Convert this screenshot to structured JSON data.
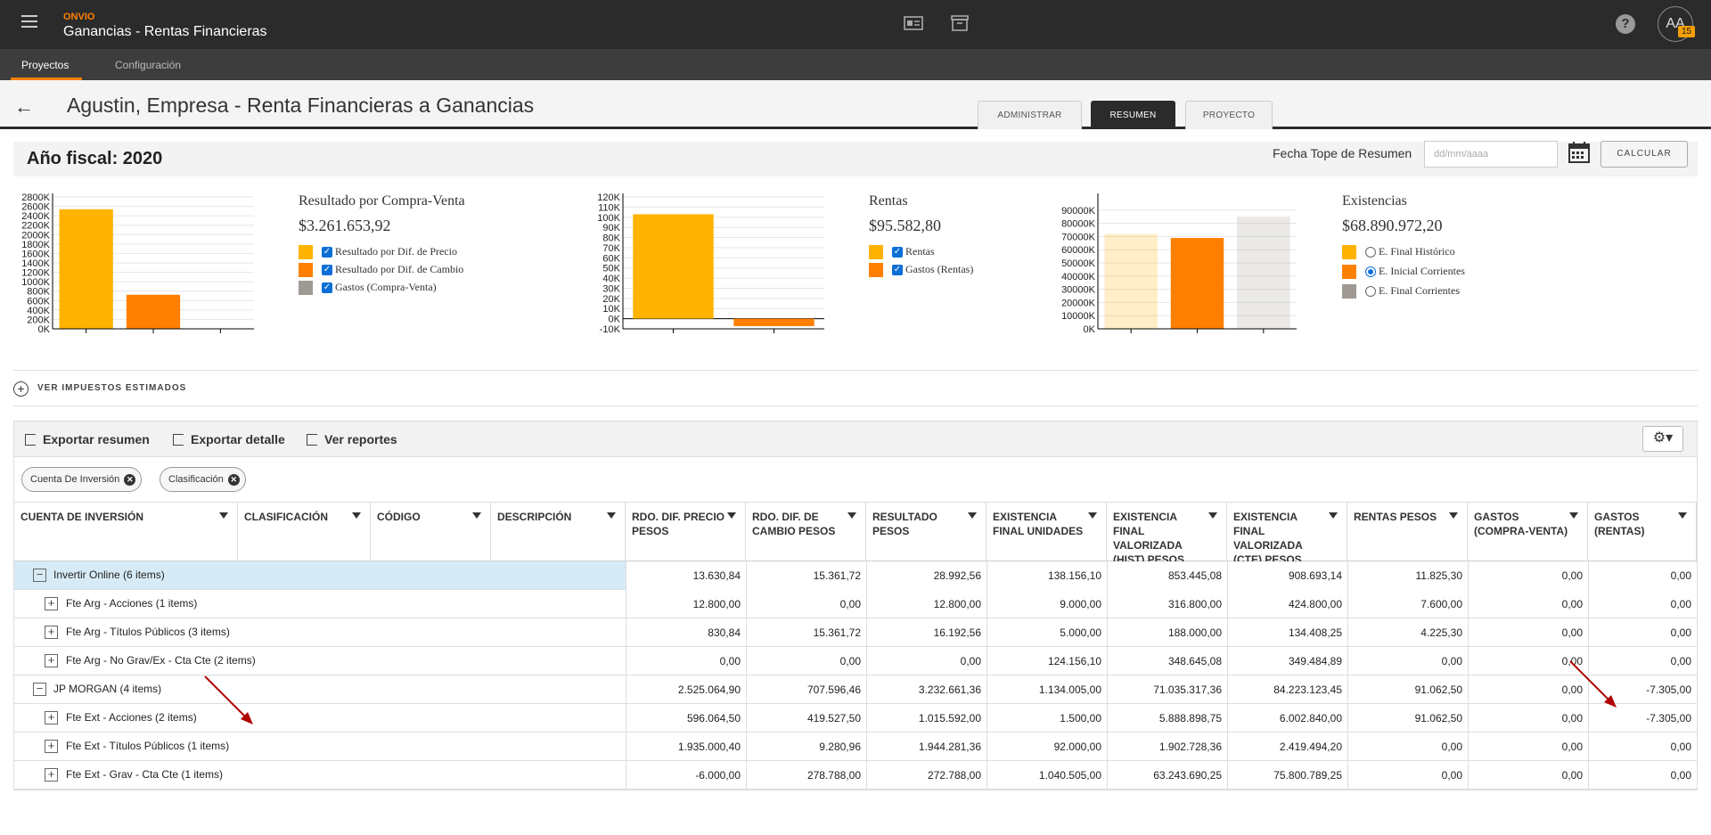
{
  "app": {
    "brand": "ONVIO",
    "title": "Ganancias - Rentas Financieras",
    "avatar": "AA",
    "badge": "15",
    "help": "?"
  },
  "subnav": {
    "tabs": [
      "Proyectos",
      "Configuración"
    ]
  },
  "page": {
    "title": "Agustin, Empresa - Renta Financieras a Ganancias",
    "tabs": [
      "ADMINISTRAR",
      "RESUMEN",
      "PROYECTO"
    ]
  },
  "fiscal": {
    "year_label": "Año fiscal: 2020",
    "date_label": "Fecha Tope de Resumen",
    "date_placeholder": "dd/mm/aaaa",
    "calc_label": "CALCULAR"
  },
  "chart_data": [
    {
      "type": "bar",
      "title": "Resultado por Compra-Venta",
      "total": "$3.261.653,92",
      "yticks": [
        "2800K",
        "2600K",
        "2400K",
        "2200K",
        "2000K",
        "1800K",
        "1600K",
        "1400K",
        "1200K",
        "1000K",
        "800K",
        "600K",
        "400K",
        "200K",
        "0K"
      ],
      "ylim": [
        0,
        2800000
      ],
      "categories": [
        "Resultado por Dif. de Precio",
        "Resultado por Dif. de Cambio",
        "Gastos (Compra-Venta)"
      ],
      "values": [
        2538695.74,
        722958.18,
        0
      ],
      "colors": [
        "#ffb300",
        "#ff8000",
        "#9e9993"
      ],
      "legend": [
        "Resultado por Dif. de Precio",
        "Resultado por Dif. de Cambio",
        "Gastos (Compra-Venta)"
      ]
    },
    {
      "type": "bar",
      "title": "Rentas",
      "total": "$95.582,80",
      "yticks": [
        "120K",
        "110K",
        "100K",
        "90K",
        "80K",
        "70K",
        "60K",
        "50K",
        "40K",
        "30K",
        "20K",
        "10K",
        "0K",
        "-10K"
      ],
      "ylim": [
        -10000,
        120000
      ],
      "categories": [
        "Rentas",
        "Gastos (Rentas)"
      ],
      "values": [
        102887.8,
        -7305
      ],
      "colors": [
        "#ffb300",
        "#ff8000"
      ],
      "legend": [
        "Rentas",
        "Gastos (Rentas)"
      ]
    },
    {
      "type": "bar",
      "title": "Existencias",
      "total": "$68.890.972,20",
      "yticks": [
        "90000K",
        "80000K",
        "70000K",
        "60000K",
        "50000K",
        "40000K",
        "30000K",
        "20000K",
        "10000K",
        "0K"
      ],
      "ylim": [
        0,
        100000000
      ],
      "categories": [
        "E. Final Histórico",
        "E. Inicial Corrientes",
        "E. Final Corrientes"
      ],
      "values": [
        71888762.4,
        68890972.2,
        85131816.59
      ],
      "colors": [
        "#ffb300",
        "#ff8000",
        "#9e9993"
      ],
      "active_index": 1,
      "legend": [
        "E. Final Histórico",
        "E. Inicial Corrientes",
        "E. Final Corrientes"
      ]
    }
  ],
  "taxes": {
    "label": "VER IMPUESTOS ESTIMADOS"
  },
  "toolbar": {
    "export_summary": "Exportar resumen",
    "export_detail": "Exportar detalle",
    "reports": "Ver reportes"
  },
  "chips": [
    "Cuenta De Inversión",
    "Clasificación"
  ],
  "columns": [
    "CUENTA DE INVERSIÓN",
    "CLASIFICACIÓN",
    "CÓDIGO",
    "DESCRIPCIÓN",
    "RDO. DIF. PRECIO PESOS",
    "RDO. DIF. DE CAMBIO PESOS",
    "RESULTADO PESOS",
    "EXISTENCIA FINAL UNIDADES",
    "EXISTENCIA FINAL VALORIZADA (HIST) PESOS",
    "EXISTENCIA FINAL VALORIZADA (CTE) PESOS",
    "RENTAS PESOS",
    "GASTOS (COMPRA-VENTA)",
    "GASTOS (RENTAS)"
  ],
  "rows": [
    {
      "name": "Invertir Online (6 items)",
      "level": 0,
      "toggle": "−",
      "values": [
        "13.630,84",
        "15.361,72",
        "28.992,56",
        "138.156,10",
        "853.445,08",
        "908.693,14",
        "11.825,30",
        "0,00",
        "0,00"
      ]
    },
    {
      "name": "Fte Arg - Acciones (1 items)",
      "level": 1,
      "toggle": "+",
      "values": [
        "12.800,00",
        "0,00",
        "12.800,00",
        "9.000,00",
        "316.800,00",
        "424.800,00",
        "7.600,00",
        "0,00",
        "0,00"
      ]
    },
    {
      "name": "Fte Arg - Títulos Públicos (3 items)",
      "level": 1,
      "toggle": "+",
      "values": [
        "830,84",
        "15.361,72",
        "16.192,56",
        "5.000,00",
        "188.000,00",
        "134.408,25",
        "4.225,30",
        "0,00",
        "0,00"
      ]
    },
    {
      "name": "Fte Arg - No Grav/Ex - Cta Cte (2 items)",
      "level": 1,
      "toggle": "+",
      "values": [
        "0,00",
        "0,00",
        "0,00",
        "124.156,10",
        "348.645,08",
        "349.484,89",
        "0,00",
        "0,00",
        "0,00"
      ]
    },
    {
      "name": "JP MORGAN (4 items)",
      "level": 0,
      "toggle": "−",
      "values": [
        "2.525.064,90",
        "707.596,46",
        "3.232.661,36",
        "1.134.005,00",
        "71.035.317,36",
        "84.223.123,45",
        "91.062,50",
        "0,00",
        "-7.305,00"
      ]
    },
    {
      "name": "Fte Ext - Acciones (2 items)",
      "level": 1,
      "toggle": "+",
      "values": [
        "596.064,50",
        "419.527,50",
        "1.015.592,00",
        "1.500,00",
        "5.888.898,75",
        "6.002.840,00",
        "91.062,50",
        "0,00",
        "-7.305,00"
      ]
    },
    {
      "name": "Fte Ext - Títulos Públicos (1 items)",
      "level": 1,
      "toggle": "+",
      "values": [
        "1.935.000,40",
        "9.280,96",
        "1.944.281,36",
        "92.000,00",
        "1.902.728,36",
        "2.419.494,20",
        "0,00",
        "0,00",
        "0,00"
      ]
    },
    {
      "name": "Fte Ext - Grav - Cta Cte (1 items)",
      "level": 1,
      "toggle": "+",
      "values": [
        "-6.000,00",
        "278.788,00",
        "272.788,00",
        "1.040.505,00",
        "63.243.690,25",
        "75.800.789,25",
        "0,00",
        "0,00",
        "0,00"
      ]
    }
  ]
}
